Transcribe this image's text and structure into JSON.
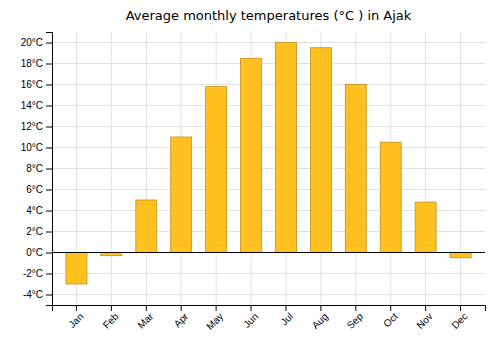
{
  "chart_data": {
    "type": "bar",
    "title": "Average monthly temperatures (°C ) in Ajak",
    "categories": [
      "Jan",
      "Feb",
      "Mar",
      "Apr",
      "May",
      "Jun",
      "Jul",
      "Aug",
      "Sep",
      "Oct",
      "Nov",
      "Dec"
    ],
    "values": [
      -3.0,
      -0.3,
      5.0,
      11.0,
      15.8,
      18.5,
      20.0,
      19.5,
      16.0,
      10.5,
      4.8,
      -0.5
    ],
    "color": "#FFC020",
    "ylim": [
      -5,
      21
    ],
    "yticks": [
      {
        "value": -4,
        "label": "-4°C"
      },
      {
        "value": -2,
        "label": "-2°C"
      },
      {
        "value": 0,
        "label": "0°C"
      },
      {
        "value": 2,
        "label": "2°C"
      },
      {
        "value": 4,
        "label": "4°C"
      },
      {
        "value": 6,
        "label": "6°C"
      },
      {
        "value": 8,
        "label": "8°C"
      },
      {
        "value": 10,
        "label": "10°C"
      },
      {
        "value": 12,
        "label": "12°C"
      },
      {
        "value": 14,
        "label": "14°C"
      },
      {
        "value": 16,
        "label": "16°C"
      },
      {
        "value": 18,
        "label": "18°C"
      },
      {
        "value": 20,
        "label": "20°C"
      }
    ],
    "grid": true
  }
}
